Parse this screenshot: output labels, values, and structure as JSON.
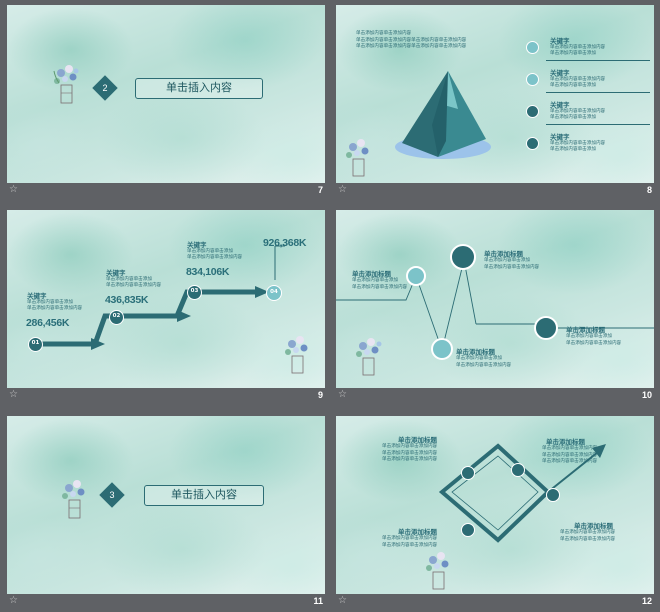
{
  "slides": [
    {
      "number": "7",
      "chapter": "2",
      "title": "单击插入内容"
    },
    {
      "number": "8",
      "intro": [
        "单击添加内容单击添加内容",
        "单击添加内容单击添加内容单击添加内容单击添加内容",
        "单击添加内容单击添加内容单击添加内容单击添加内容"
      ],
      "items": [
        {
          "keyword": "关键字",
          "lines": [
            "单击添加内容单击添加内容",
            "单击添加内容单击添加"
          ]
        },
        {
          "keyword": "关键字",
          "lines": [
            "单击添加内容单击添加内容",
            "单击添加内容单击添加"
          ]
        },
        {
          "keyword": "关键字",
          "lines": [
            "单击添加内容单击添加内容",
            "单击添加内容单击添加"
          ]
        },
        {
          "keyword": "关键字",
          "lines": [
            "单击添加内容单击添加内容",
            "单击添加内容单击添加"
          ]
        }
      ]
    },
    {
      "number": "9",
      "steps": [
        {
          "label": "01",
          "keyword": "关键字",
          "value": "286,456K",
          "lines": [
            "单击添加内容单击添加",
            "单击添加内容单击添加内容"
          ]
        },
        {
          "label": "02",
          "keyword": "关键字",
          "value": "436,835K",
          "lines": [
            "单击添加内容单击添加",
            "单击添加内容单击添加内容"
          ]
        },
        {
          "label": "03",
          "keyword": "关键字",
          "value": "834,106K",
          "lines": [
            "单击添加内容单击添加",
            "单击添加内容单击添加内容"
          ]
        },
        {
          "label": "04",
          "value": "926,368K"
        }
      ]
    },
    {
      "number": "10",
      "nodes": [
        {
          "title": "单击添加标题",
          "lines": [
            "单击添加内容单击添加",
            "单击添加内容单击添加内容"
          ]
        },
        {
          "title": "单击添加标题",
          "lines": [
            "单击添加内容单击添加",
            "单击添加内容单击添加内容"
          ]
        },
        {
          "title": "单击添加标题",
          "lines": [
            "单击添加内容单击添加",
            "单击添加内容单击添加内容"
          ]
        },
        {
          "title": "单击添加标题",
          "lines": [
            "单击添加内容单击添加",
            "单击添加内容单击添加内容"
          ]
        }
      ]
    },
    {
      "number": "11",
      "chapter": "3",
      "title": "单击插入内容"
    },
    {
      "number": "12",
      "blocks": [
        {
          "title": "单击添加标题",
          "lines": [
            "单击添加内容单击添加内容",
            "单击添加内容单击添加内容",
            "单击添加内容单击添加内容"
          ]
        },
        {
          "title": "单击添加标题",
          "lines": [
            "单击添加内容单击添加内容",
            "单击添加内容单击添加内容",
            "单击添加内容单击添加内容"
          ]
        },
        {
          "title": "单击添加标题",
          "lines": [
            "单击添加内容单击添加内容",
            "单击添加内容单击添加内容"
          ]
        },
        {
          "title": "单击添加标题",
          "lines": [
            "单击添加内容单击添加内容",
            "单击添加内容单击添加内容"
          ]
        }
      ]
    }
  ],
  "colors": {
    "accent": "#2c6c74",
    "light_accent": "#7cc3c9",
    "background": "#5f6165"
  },
  "icons": [
    "star-icon",
    "flower-vase-icon",
    "chart-icon",
    "monitor-icon",
    "building-icon",
    "settings-icon",
    "image-icon",
    "tree-icon",
    "bar-chart-icon",
    "pyramid-icon"
  ]
}
